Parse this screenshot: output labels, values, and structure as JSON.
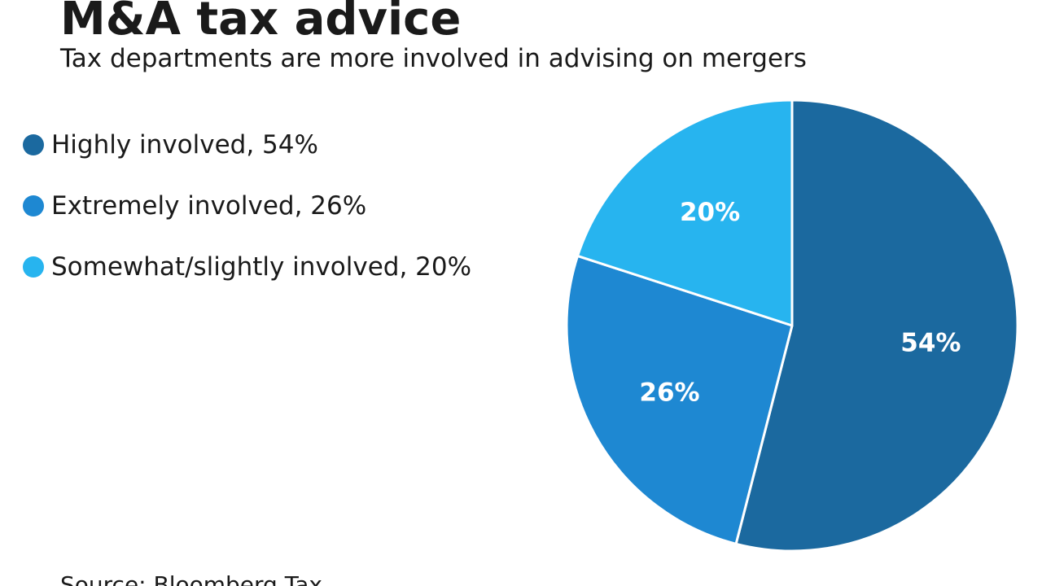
{
  "title": "M&A tax advice",
  "subtitle": "Tax departments are more involved in advising on mergers",
  "source": "Source: Bloomberg Tax",
  "legend": [
    {
      "label": "Highly involved, 54%",
      "color": "#1b699f"
    },
    {
      "label": "Extremely involved, 26%",
      "color": "#1e88d2"
    },
    {
      "label": "Somewhat/slightly involved, 20%",
      "color": "#27b4ef"
    }
  ],
  "chart_data": {
    "type": "pie",
    "title": "M&A tax advice",
    "subtitle": "Tax departments are more involved in advising on mergers",
    "slices": [
      {
        "name": "Highly involved",
        "value": 54,
        "label": "54%",
        "color": "#1b699f"
      },
      {
        "name": "Extremely involved",
        "value": 26,
        "label": "26%",
        "color": "#1e88d2"
      },
      {
        "name": "Somewhat/slightly involved",
        "value": 20,
        "label": "20%",
        "color": "#27b4ef"
      }
    ],
    "start_angle": "12 o'clock, clockwise",
    "legend_position": "left"
  }
}
